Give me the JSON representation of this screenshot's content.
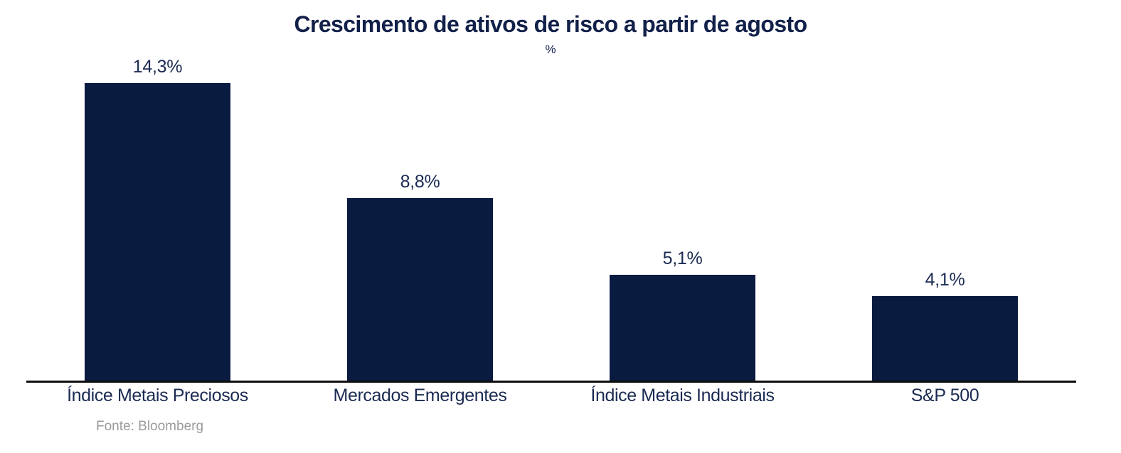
{
  "title": "Crescimento de ativos de risco a partir de agosto",
  "subtitle": "%",
  "source": "Fonte: Bloomberg",
  "colors": {
    "bar": "#0a1b40",
    "title_text": "#12214a",
    "label_text": "#1b2a52",
    "axis_line": "#0d0d0d",
    "source_text": "#9b9b9b",
    "background": "#ffffff"
  },
  "chart_data": {
    "type": "bar",
    "categories": [
      "Índice Metais Preciosos",
      "Mercados Emergentes",
      "Índice Metais Industriais",
      "S&P 500"
    ],
    "values": [
      14.3,
      8.8,
      5.1,
      4.1
    ],
    "value_labels": [
      "14,3%",
      "8,8%",
      "5,1%",
      "4,1%"
    ],
    "title": "Crescimento de ativos de risco a partir de agosto",
    "xlabel": "",
    "ylabel": "%",
    "ylim": [
      0,
      14.3
    ],
    "grid": false,
    "legend": false,
    "bar_color": "#0a1b40"
  }
}
